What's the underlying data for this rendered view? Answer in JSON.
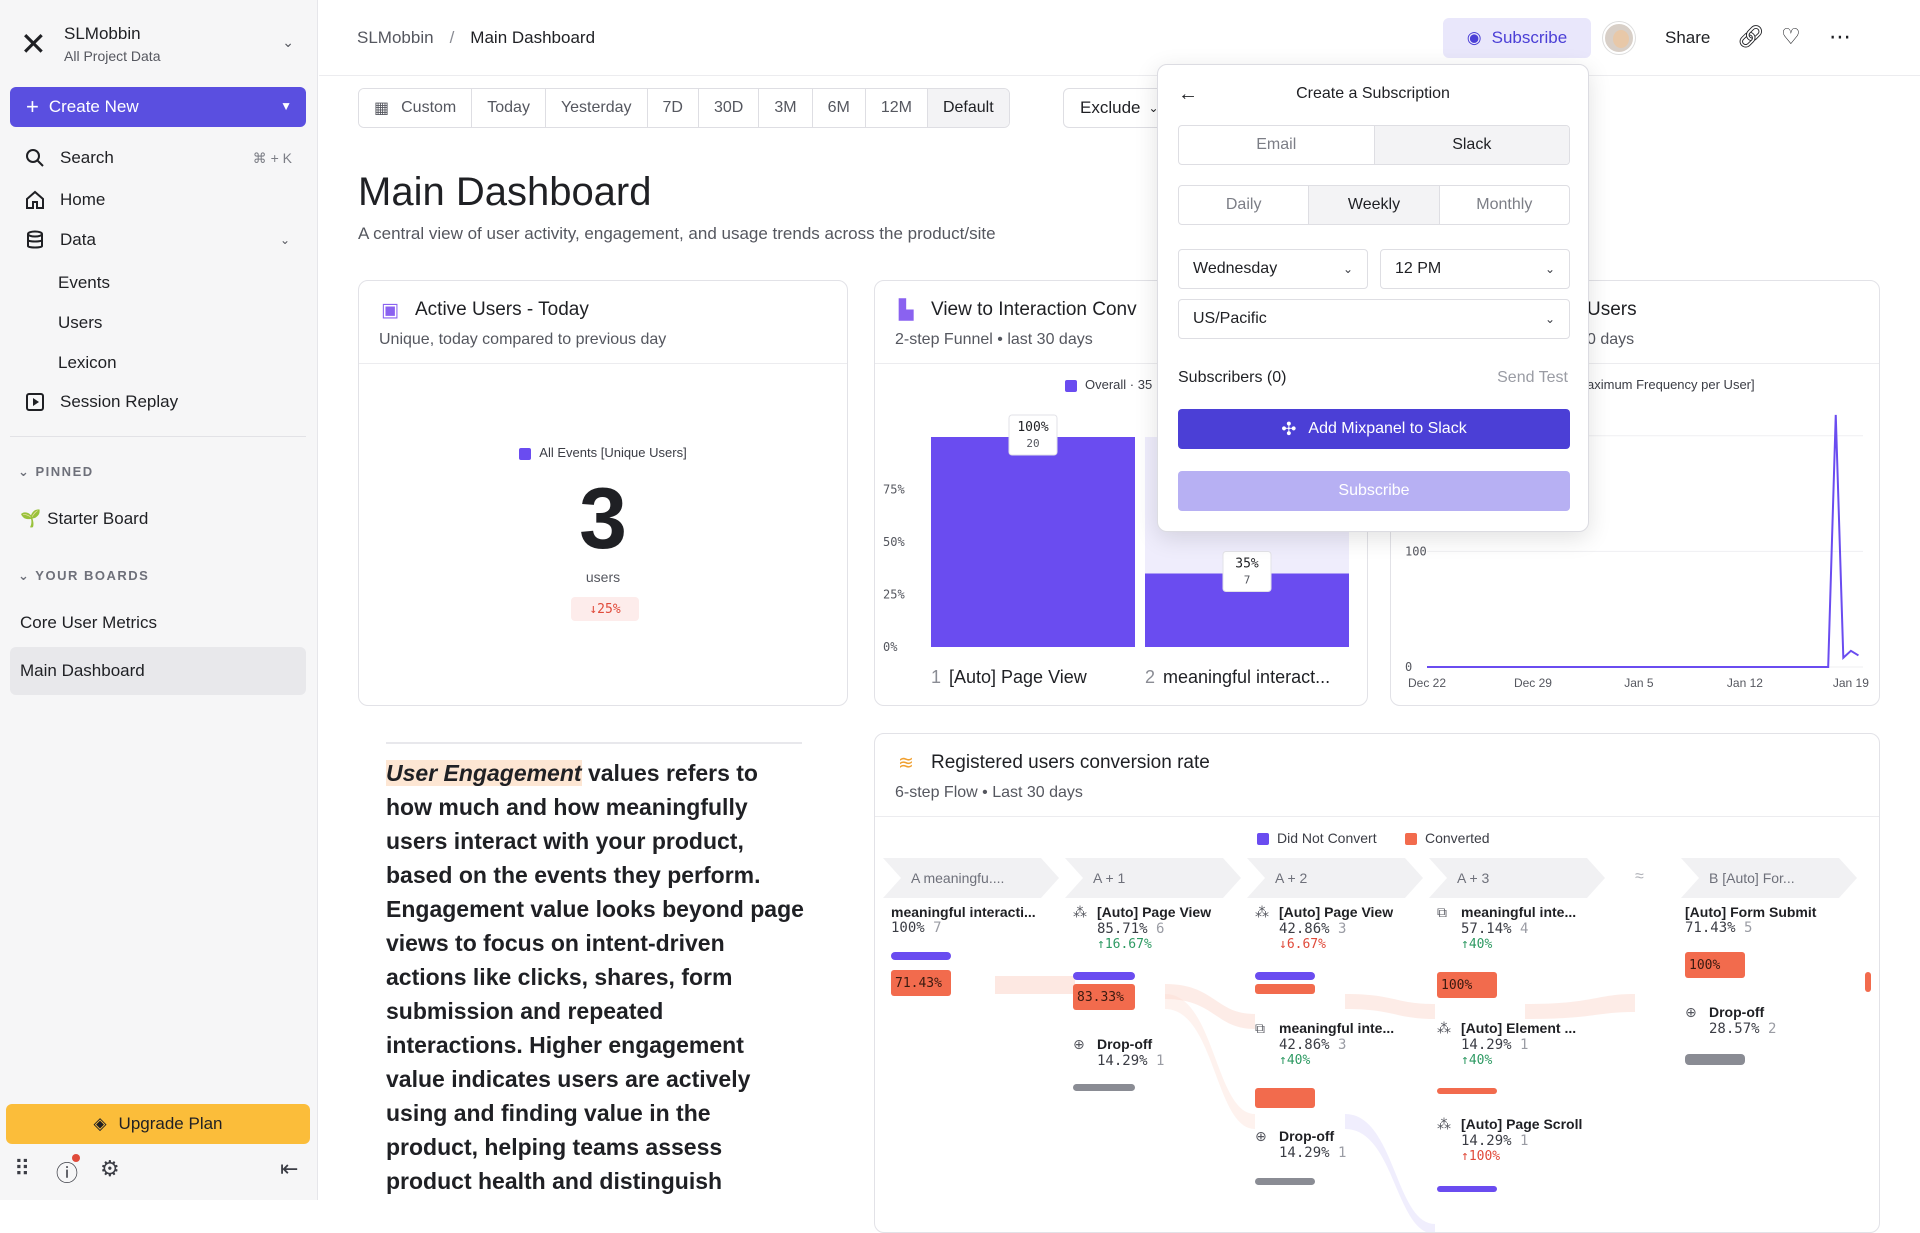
{
  "workspace": {
    "name": "SLMobbin",
    "sub": "All Project Data"
  },
  "sidebar": {
    "create_label": "Create New",
    "nav": [
      {
        "label": "Search",
        "kbd": "⌘ + K"
      },
      {
        "label": "Home"
      },
      {
        "label": "Data"
      }
    ],
    "data_items": [
      "Events",
      "Users",
      "Lexicon"
    ],
    "session_replay": "Session Replay",
    "pinned_label": "PINNED",
    "pinned": [
      "Starter Board"
    ],
    "boards_label": "YOUR BOARDS",
    "boards": [
      "Core User Metrics",
      "Main Dashboard"
    ],
    "upgrade_label": "Upgrade Plan"
  },
  "topbar": {
    "crumb_root": "SLMobbin",
    "crumb_sep": "/",
    "crumb_current": "Main Dashboard",
    "subscribe": "Subscribe",
    "share": "Share"
  },
  "filters": {
    "ranges": [
      "Custom",
      "Today",
      "Yesterday",
      "7D",
      "30D",
      "3M",
      "6M",
      "12M",
      "Default"
    ],
    "exclude": "Exclude"
  },
  "header": {
    "title": "Main Dashboard",
    "desc": "A central view of user activity, engagement, and usage trends across the product/site"
  },
  "active_users": {
    "title": "Active Users - Today",
    "sub": "Unique, today compared to previous day",
    "legend": "All Events [Unique Users]",
    "value": "3",
    "unit": "users",
    "delta": "25%"
  },
  "funnel": {
    "title": "View to Interaction Conv",
    "sub": "2-step Funnel • last 30 days",
    "legend": "Overall · 35",
    "chart_data": {
      "type": "bar",
      "categories": [
        "[Auto] Page View",
        "meaningful interact..."
      ],
      "step_numbers": [
        "1",
        "2"
      ],
      "values": [
        100,
        35
      ],
      "counts": [
        "20",
        "7"
      ],
      "value_labels": [
        "100%",
        "35%"
      ],
      "yticks": [
        "0%",
        "25%",
        "50%",
        "75%"
      ],
      "ylim": [
        0,
        100
      ]
    }
  },
  "users_card": {
    "title": "Users",
    "sub": "0 days",
    "legend": "aximum Frequency per User]",
    "chart_data": {
      "type": "line",
      "x": [
        "Dec 22",
        "Dec 29",
        "Jan 5",
        "Jan 12",
        "Jan 19"
      ],
      "yticks": [
        "0",
        "100"
      ],
      "series": [
        {
          "values": [
            [
              0,
              0
            ],
            [
              26.5,
              0
            ],
            [
              27,
              218
            ],
            [
              27.5,
              8
            ],
            [
              28,
              14
            ],
            [
              28.5,
              10
            ]
          ]
        }
      ],
      "xlim": [
        0,
        28.8
      ],
      "ylim": [
        0,
        230
      ]
    }
  },
  "engagement": {
    "highlight": "User Engagement",
    "text": " values refers to how much and how meaningfully users interact with your product, based on the events they perform. Engagement value looks beyond page views to focus on intent-driven actions like clicks, shares, form submission and repeated interactions. Higher engagement value indicates users are actively using and finding value in the product, helping teams assess product health and distinguish"
  },
  "subscription": {
    "title": "Create a Subscription",
    "channels": [
      "Email",
      "Slack"
    ],
    "frequencies": [
      "Daily",
      "Weekly",
      "Monthly"
    ],
    "day": "Wednesday",
    "time": "12 PM",
    "timezone": "US/Pacific",
    "subscribers": "Subscribers (0)",
    "send_test": "Send Test",
    "slack_btn": "Add Mixpanel to Slack",
    "subscribe_btn": "Subscribe"
  },
  "flow": {
    "title": "Registered users conversion rate",
    "sub": "6-step Flow • Last 30 days",
    "legend": [
      "Did Not Convert",
      "Converted"
    ],
    "steps": [
      "A meaningfu....",
      "A + 1",
      "A + 2",
      "A + 3",
      "B [Auto] For..."
    ],
    "col0": {
      "name": "meaningful interacti...",
      "pct": "100%",
      "count": "7",
      "badge": "71.43%"
    },
    "col1": {
      "name": "[Auto] Page View",
      "pct": "85.71%",
      "count": "6",
      "delta": "↑16.67%",
      "badge": "83.33%",
      "drop": "Drop-off",
      "drop_pct": "14.29%",
      "drop_count": "1"
    },
    "col2": {
      "name": "[Auto] Page View",
      "pct": "42.86%",
      "count": "3",
      "delta": "↓6.67%",
      "name2": "meaningful inte...",
      "pct2": "42.86%",
      "count2": "3",
      "delta2": "↑40%",
      "drop": "Drop-off",
      "drop_pct": "14.29%",
      "drop_count": "1"
    },
    "col3": {
      "name": "meaningful inte...",
      "pct": "57.14%",
      "count": "4",
      "delta": "↑40%",
      "badge": "100%",
      "name2": "[Auto] Element ...",
      "pct2": "14.29%",
      "count2": "1",
      "delta2": "↑40%",
      "name3": "[Auto] Page Scroll",
      "pct3": "14.29%",
      "count3": "1",
      "delta3": "↑100%"
    },
    "col4": {
      "name": "[Auto] Form Submit",
      "pct": "71.43%",
      "count": "5",
      "badge": "100%",
      "drop": "Drop-off",
      "drop_pct": "28.57%",
      "drop_count": "2"
    }
  },
  "colors": {
    "accent": "#5a4fe0",
    "converted": "#f26b4d",
    "did_not_convert": "#6a4cf0",
    "upgrade": "#fbbd3a"
  }
}
